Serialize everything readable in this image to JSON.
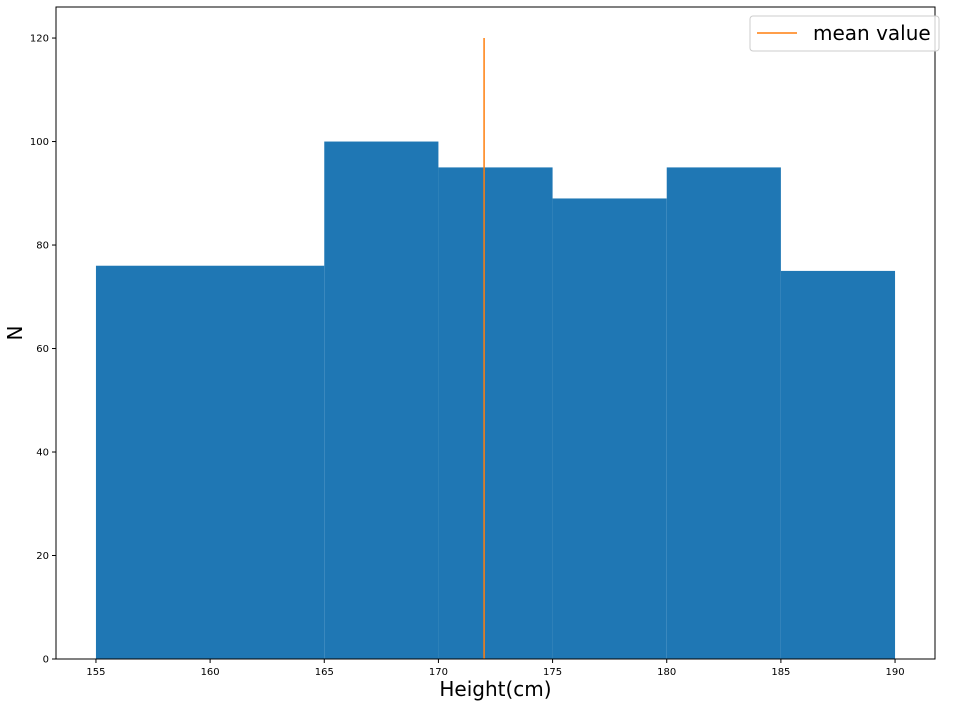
{
  "chart_data": {
    "type": "histogram",
    "title": "",
    "xlabel": "Height(cm)",
    "ylabel": "N",
    "xlim": [
      153.25,
      191.75
    ],
    "ylim": [
      0,
      126
    ],
    "xticks": [
      155,
      160,
      165,
      170,
      175,
      180,
      185,
      190
    ],
    "yticks": [
      0,
      20,
      40,
      60,
      80,
      100,
      120
    ],
    "bins": [
      {
        "x0": 155,
        "x1": 165,
        "count": 76
      },
      {
        "x0": 165,
        "x1": 170,
        "count": 100
      },
      {
        "x0": 170,
        "x1": 175,
        "count": 95
      },
      {
        "x0": 175,
        "x1": 180,
        "count": 89
      },
      {
        "x0": 180,
        "x1": 185,
        "count": 95
      },
      {
        "x0": 185,
        "x1": 190,
        "count": 75
      }
    ],
    "bar_color": "#1f77b4",
    "mean_line": {
      "x": 172,
      "y0": 0,
      "y1": 120,
      "color": "#ff7f0e",
      "label": "mean value"
    },
    "legend": {
      "position": "top-right",
      "entries": [
        "mean value"
      ]
    },
    "grid": false
  }
}
